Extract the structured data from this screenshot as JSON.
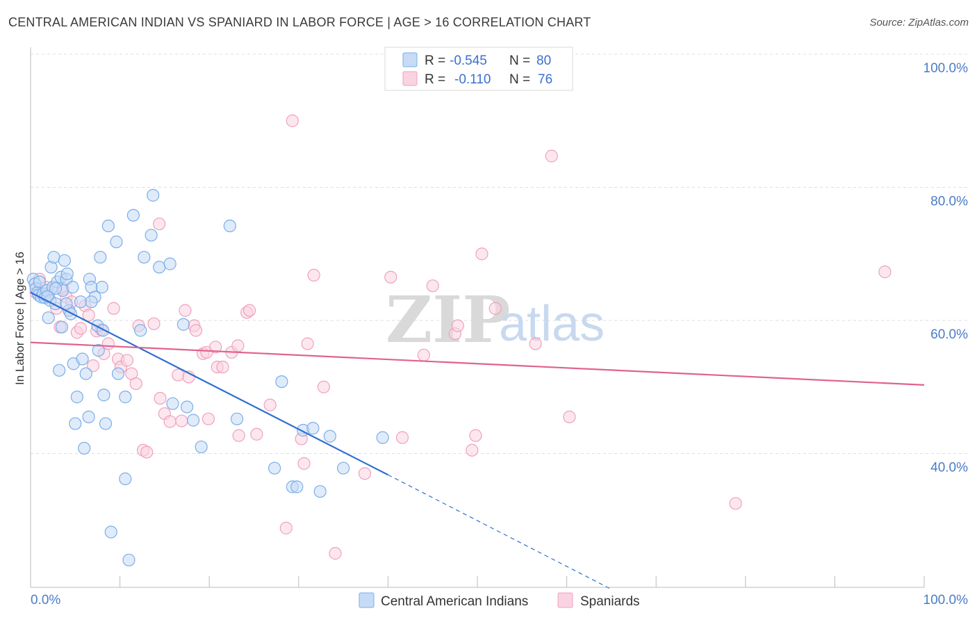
{
  "title": "CENTRAL AMERICAN INDIAN VS SPANIARD IN LABOR FORCE | AGE > 16 CORRELATION CHART",
  "source": "Source: ZipAtlas.com",
  "watermark": {
    "zip": "ZIP",
    "atlas": "atlas"
  },
  "colors": {
    "blue": "#7aaee8",
    "blue_fill": "#c6dbf5",
    "blue_line": "#2f6fd0",
    "pink": "#f0a0bc",
    "pink_fill": "#f9d3e1",
    "pink_line": "#e0628f",
    "grid": "#dddddd",
    "axis_text": "#4a7cc7"
  },
  "legend": {
    "rows": [
      {
        "r_label": "R =",
        "r_value": "-0.545",
        "n_label": "N =",
        "n_value": "80"
      },
      {
        "r_label": "R =",
        "r_value": "-0.110",
        "n_label": "N =",
        "n_value": "76"
      }
    ]
  },
  "chart_data": {
    "type": "scatter",
    "title": "CENTRAL AMERICAN INDIAN VS SPANIARD IN LABOR FORCE | AGE > 16 CORRELATION CHART",
    "xlabel": "",
    "ylabel": "In Labor Force | Age > 16",
    "xlim": [
      0,
      100
    ],
    "ylim": [
      20,
      100
    ],
    "x_tick_labels": [
      "0.0%",
      "100.0%"
    ],
    "y_ticks": [
      40,
      60,
      80,
      100
    ],
    "y_tick_labels": [
      "40.0%",
      "60.0%",
      "80.0%",
      "100.0%"
    ],
    "grid": true,
    "legend_position": "bottom-center",
    "series": [
      {
        "name": "Central American Indians",
        "R": -0.545,
        "N": 80,
        "trend": {
          "x0": 0,
          "y0": 64.2,
          "x1": 40.0,
          "y1": 36.8,
          "dash_to_x": 65.0,
          "dash_to_y": 19.6
        },
        "points": [
          [
            0.3,
            66.2
          ],
          [
            0.5,
            65.5
          ],
          [
            0.6,
            64.8
          ],
          [
            0.8,
            64.2
          ],
          [
            0.9,
            63.8
          ],
          [
            1.0,
            65.8
          ],
          [
            1.2,
            63.5
          ],
          [
            1.4,
            64.0
          ],
          [
            1.6,
            63.4
          ],
          [
            1.8,
            64.5
          ],
          [
            2.0,
            60.4
          ],
          [
            2.2,
            63.0
          ],
          [
            2.3,
            68.0
          ],
          [
            2.5,
            65.0
          ],
          [
            2.6,
            69.5
          ],
          [
            2.8,
            62.5
          ],
          [
            3.0,
            65.8
          ],
          [
            3.2,
            52.5
          ],
          [
            3.4,
            66.5
          ],
          [
            3.5,
            59.0
          ],
          [
            3.6,
            64.5
          ],
          [
            3.8,
            69.0
          ],
          [
            4.0,
            66.2
          ],
          [
            4.1,
            67.0
          ],
          [
            4.3,
            61.5
          ],
          [
            4.5,
            61.0
          ],
          [
            4.7,
            65.0
          ],
          [
            4.8,
            53.5
          ],
          [
            5.0,
            44.5
          ],
          [
            5.2,
            48.5
          ],
          [
            5.6,
            62.8
          ],
          [
            5.8,
            54.2
          ],
          [
            6.0,
            40.8
          ],
          [
            6.2,
            52.0
          ],
          [
            6.5,
            45.5
          ],
          [
            6.6,
            66.2
          ],
          [
            6.8,
            65.0
          ],
          [
            7.2,
            63.5
          ],
          [
            7.5,
            59.2
          ],
          [
            7.6,
            55.5
          ],
          [
            7.8,
            69.5
          ],
          [
            8.0,
            65.0
          ],
          [
            8.2,
            48.8
          ],
          [
            8.4,
            44.5
          ],
          [
            8.7,
            74.2
          ],
          [
            9.0,
            28.2
          ],
          [
            9.6,
            71.8
          ],
          [
            9.8,
            52.0
          ],
          [
            10.6,
            36.2
          ],
          [
            10.6,
            48.5
          ],
          [
            11.0,
            24.0
          ],
          [
            11.5,
            75.8
          ],
          [
            12.3,
            58.5
          ],
          [
            12.7,
            69.5
          ],
          [
            13.5,
            72.8
          ],
          [
            13.7,
            78.8
          ],
          [
            14.4,
            68.0
          ],
          [
            15.6,
            68.5
          ],
          [
            15.9,
            47.5
          ],
          [
            17.1,
            59.4
          ],
          [
            17.5,
            47.0
          ],
          [
            18.2,
            45.0
          ],
          [
            19.1,
            41.0
          ],
          [
            22.3,
            74.2
          ],
          [
            23.1,
            45.2
          ],
          [
            27.3,
            37.8
          ],
          [
            28.1,
            50.8
          ],
          [
            29.3,
            35.0
          ],
          [
            29.8,
            35.0
          ],
          [
            30.5,
            43.5
          ],
          [
            31.6,
            43.8
          ],
          [
            32.4,
            34.3
          ],
          [
            33.5,
            42.6
          ],
          [
            35.0,
            37.8
          ],
          [
            39.4,
            42.4
          ],
          [
            4.0,
            62.5
          ],
          [
            6.8,
            62.8
          ],
          [
            2.8,
            64.8
          ],
          [
            1.9,
            63.6
          ],
          [
            8.1,
            58.5
          ]
        ]
      },
      {
        "name": "Spaniards",
        "R": -0.11,
        "N": 76,
        "trend": {
          "x0": 0,
          "y0": 56.7,
          "x1": 100,
          "y1": 50.3
        },
        "points": [
          [
            0.6,
            64.2
          ],
          [
            1.0,
            66.2
          ],
          [
            1.3,
            64.8
          ],
          [
            1.7,
            65.0
          ],
          [
            2.1,
            64.2
          ],
          [
            2.9,
            61.8
          ],
          [
            3.3,
            59.0
          ],
          [
            3.6,
            64.8
          ],
          [
            4.0,
            63.5
          ],
          [
            4.3,
            61.5
          ],
          [
            4.6,
            62.8
          ],
          [
            5.2,
            58.2
          ],
          [
            5.6,
            58.8
          ],
          [
            6.1,
            62.2
          ],
          [
            6.5,
            60.8
          ],
          [
            7.0,
            53.2
          ],
          [
            7.4,
            58.4
          ],
          [
            7.9,
            58.6
          ],
          [
            8.2,
            55.0
          ],
          [
            8.7,
            56.5
          ],
          [
            9.3,
            61.8
          ],
          [
            9.8,
            54.2
          ],
          [
            10.1,
            53.0
          ],
          [
            10.8,
            54.0
          ],
          [
            11.3,
            52.0
          ],
          [
            11.8,
            50.5
          ],
          [
            12.1,
            59.2
          ],
          [
            12.6,
            40.5
          ],
          [
            13.0,
            40.2
          ],
          [
            13.8,
            59.5
          ],
          [
            14.4,
            74.5
          ],
          [
            14.5,
            48.3
          ],
          [
            15.0,
            46.0
          ],
          [
            15.6,
            44.8
          ],
          [
            16.5,
            51.8
          ],
          [
            16.9,
            44.9
          ],
          [
            17.3,
            61.5
          ],
          [
            17.7,
            51.5
          ],
          [
            18.3,
            59.2
          ],
          [
            18.5,
            58.5
          ],
          [
            19.3,
            55.0
          ],
          [
            19.7,
            55.2
          ],
          [
            19.9,
            45.2
          ],
          [
            20.7,
            56.0
          ],
          [
            20.9,
            53.0
          ],
          [
            21.5,
            53.0
          ],
          [
            22.5,
            55.2
          ],
          [
            23.2,
            56.2
          ],
          [
            23.3,
            42.7
          ],
          [
            24.2,
            61.2
          ],
          [
            24.5,
            61.5
          ],
          [
            25.3,
            42.9
          ],
          [
            26.8,
            47.3
          ],
          [
            28.6,
            28.8
          ],
          [
            29.3,
            90.0
          ],
          [
            30.3,
            42.2
          ],
          [
            30.6,
            38.5
          ],
          [
            31.0,
            56.5
          ],
          [
            31.7,
            66.8
          ],
          [
            32.8,
            50.0
          ],
          [
            34.1,
            25.0
          ],
          [
            37.4,
            37.0
          ],
          [
            40.3,
            66.5
          ],
          [
            41.6,
            42.4
          ],
          [
            44.0,
            54.8
          ],
          [
            45.0,
            65.2
          ],
          [
            47.5,
            58.0
          ],
          [
            47.8,
            59.2
          ],
          [
            49.4,
            40.5
          ],
          [
            49.8,
            42.7
          ],
          [
            50.5,
            70.0
          ],
          [
            52.0,
            61.8
          ],
          [
            56.5,
            56.5
          ],
          [
            58.3,
            84.7
          ],
          [
            60.3,
            45.5
          ],
          [
            78.9,
            32.5
          ]
        ]
      }
    ],
    "extra_points": {
      "note": "",
      "pink_far": [
        [
          95.6,
          67.3
        ]
      ]
    }
  },
  "bottom_legend": [
    "Central American Indians",
    "Spaniards"
  ]
}
